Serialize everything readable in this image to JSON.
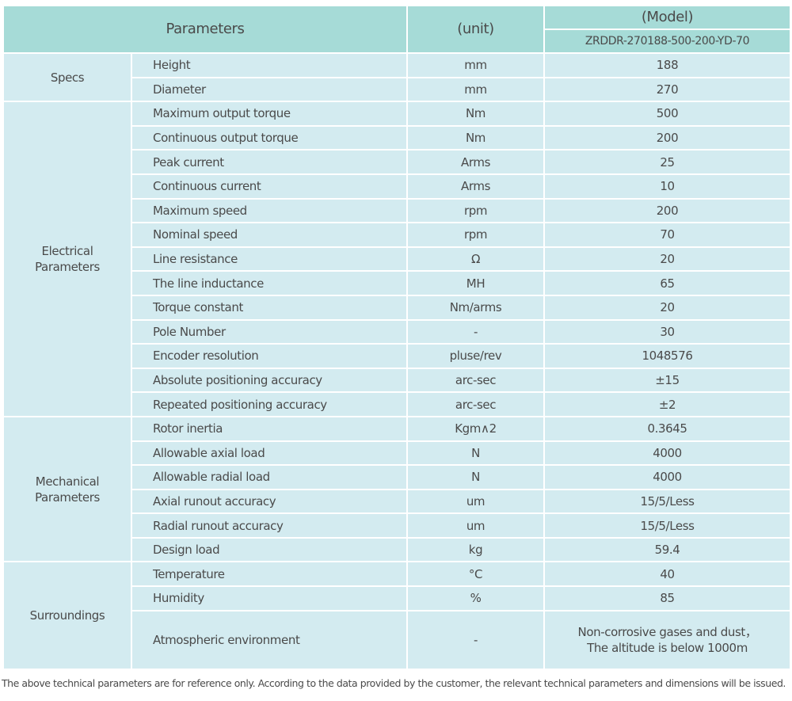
{
  "header": {
    "parameters": "Parameters",
    "unit": "(unit)",
    "model_label": "(Model)",
    "model": "ZRDDR-270188-500-200-YD-70"
  },
  "groups": [
    {
      "name": "Specs",
      "rows": [
        {
          "parameter": "Height",
          "unit": "mm",
          "value": "188"
        },
        {
          "parameter": "Diameter",
          "unit": "mm",
          "value": "270"
        }
      ]
    },
    {
      "name": "Electrical Parameters",
      "rows": [
        {
          "parameter": "Maximum output torque",
          "unit": "Nm",
          "value": "500"
        },
        {
          "parameter": "Continuous output torque",
          "unit": "Nm",
          "value": "200"
        },
        {
          "parameter": "Peak current",
          "unit": "Arms",
          "value": "25"
        },
        {
          "parameter": "Continuous current",
          "unit": "Arms",
          "value": "10"
        },
        {
          "parameter": "Maximum speed",
          "unit": "rpm",
          "value": "200"
        },
        {
          "parameter": "Nominal speed",
          "unit": "rpm",
          "value": "70"
        },
        {
          "parameter": "Line resistance",
          "unit": "Ω",
          "value": "20"
        },
        {
          "parameter": "The line inductance",
          "unit": "MH",
          "value": "65"
        },
        {
          "parameter": "Torque constant",
          "unit": "Nm/arms",
          "value": "20"
        },
        {
          "parameter": "Pole Number",
          "unit": "-",
          "value": "30"
        },
        {
          "parameter": "Encoder resolution",
          "unit": "pluse/rev",
          "value": "1048576"
        },
        {
          "parameter": "Absolute positioning accuracy",
          "unit": "arc-sec",
          "value": "±15"
        },
        {
          "parameter": "Repeated positioning accuracy",
          "unit": "arc-sec",
          "value": "±2"
        }
      ]
    },
    {
      "name": "Mechanical Parameters",
      "rows": [
        {
          "parameter": "Rotor inertia",
          "unit": "Kgm∧2",
          "value": "0.3645"
        },
        {
          "parameter": "Allowable axial load",
          "unit": "N",
          "value": "4000"
        },
        {
          "parameter": "Allowable radial load",
          "unit": "N",
          "value": "4000"
        },
        {
          "parameter": "Axial runout accuracy",
          "unit": "um",
          "value": "15/5/Less"
        },
        {
          "parameter": "Radial runout accuracy",
          "unit": "um",
          "value": "15/5/Less"
        },
        {
          "parameter": "Design load",
          "unit": "kg",
          "value": "59.4"
        }
      ]
    },
    {
      "name": "Surroundings",
      "rows": [
        {
          "parameter": "Temperature",
          "unit": "°C",
          "value": "40"
        },
        {
          "parameter": "Humidity",
          "unit": "%",
          "value": "85"
        },
        {
          "parameter": "Atmospheric environment",
          "unit": "-",
          "value": "Non-corrosive gases and dust，\nThe altitude is below 1000m"
        }
      ]
    }
  ],
  "footer": "The above technical parameters are for reference only. According to the data provided by the customer, the relevant technical parameters and dimensions will be issued."
}
